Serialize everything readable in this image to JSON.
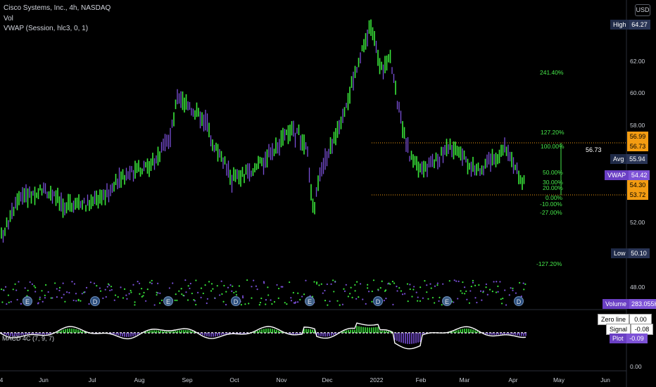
{
  "header": {
    "symbol_line": "Cisco Systems, Inc., 4h, NASDAQ",
    "vol_label": "Vol",
    "vwap_label": "VWAP (Session, hlc3, 0, 1)",
    "macd_label": "MACD 4C (7, 9, 7)",
    "currency": "USD"
  },
  "price_axis": {
    "ticks": [
      "62.00",
      "60.00",
      "58.00",
      "52.00",
      "48.00"
    ],
    "macd_ticks": [
      "0.00"
    ]
  },
  "time_axis": [
    "4",
    "Jun",
    "Jul",
    "Aug",
    "Sep",
    "Oct",
    "Nov",
    "Dec",
    "2022",
    "Feb",
    "Mar",
    "Apr",
    "May",
    "Jun"
  ],
  "tags": {
    "high": {
      "label": "High",
      "value": "64.27"
    },
    "low": {
      "label": "Low",
      "value": "50.10"
    },
    "avg": {
      "label": "Avg",
      "value": "55.94"
    },
    "vwap": {
      "label": "VWAP",
      "value": "54.42"
    },
    "volume": {
      "label": "Volume",
      "value": "283.055K"
    },
    "fib_top": "56.99",
    "fib_mid": "56.73",
    "current_price": "54.30",
    "fib_bottom": "53.72",
    "zero_line": {
      "label": "Zero line",
      "value": "0.00"
    },
    "signal": {
      "label": "Signal",
      "value": "-0.08"
    },
    "plot": {
      "label": "Plot",
      "value": "-0.09"
    }
  },
  "fib_levels": [
    "241.40%",
    "127.20%",
    "100.00%",
    "50.00%",
    "30.00%",
    "20.00%",
    "0.00%",
    "-10.00%",
    "-27.00%",
    "-127.20%"
  ],
  "fib_range_value": "56.73",
  "event_badges": {
    "earnings": "E",
    "dividend": "D"
  },
  "colors": {
    "up": "#39e63a",
    "down": "#7a4fd8",
    "fib": "#46e84a",
    "orange": "#f39c12"
  }
}
